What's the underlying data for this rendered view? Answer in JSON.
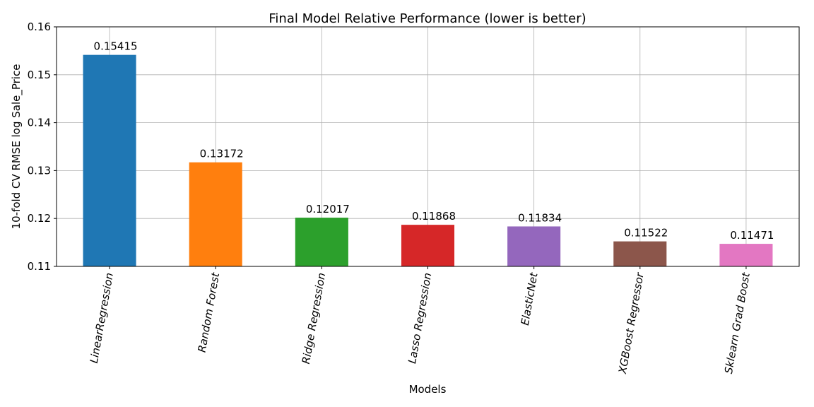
{
  "chart_data": {
    "type": "bar",
    "title": "Final Model Relative Performance (lower is better)",
    "xlabel": "Models",
    "ylabel": "10-fold CV RMSE log Sale_Price",
    "ylim": [
      0.11,
      0.16
    ],
    "yticks": [
      0.11,
      0.12,
      0.13,
      0.14,
      0.15,
      0.16
    ],
    "ytick_labels": [
      "0.11",
      "0.12",
      "0.13",
      "0.14",
      "0.15",
      "0.16"
    ],
    "grid": true,
    "categories": [
      "LinearRegression",
      "Random Forest",
      "Ridge Regression",
      "Lasso Regression",
      "ElasticNet",
      "XGBoost Regressor",
      "Sklearn Grad Boost"
    ],
    "values": [
      0.15415,
      0.13172,
      0.12017,
      0.11868,
      0.11834,
      0.11522,
      0.11471
    ],
    "value_labels": [
      "0.15415",
      "0.13172",
      "0.12017",
      "0.11868",
      "0.11834",
      "0.11522",
      "0.11471"
    ],
    "colors": [
      "#1f77b4",
      "#ff7f0e",
      "#2ca02c",
      "#d62728",
      "#9467bd",
      "#8c564b",
      "#e377c2"
    ]
  }
}
